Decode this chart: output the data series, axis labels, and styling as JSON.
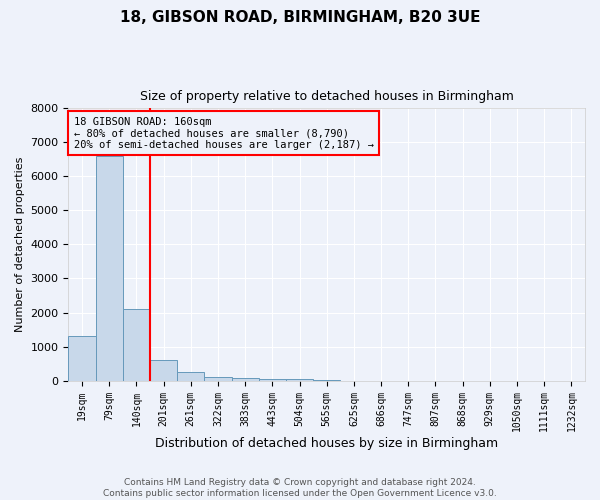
{
  "title": "18, GIBSON ROAD, BIRMINGHAM, B20 3UE",
  "subtitle": "Size of property relative to detached houses in Birmingham",
  "xlabel": "Distribution of detached houses by size in Birmingham",
  "ylabel": "Number of detached properties",
  "bar_color": "#c8d8ea",
  "bar_edge_color": "#6699bb",
  "categories": [
    "19sqm",
    "79sqm",
    "140sqm",
    "201sqm",
    "261sqm",
    "322sqm",
    "383sqm",
    "443sqm",
    "504sqm",
    "565sqm",
    "625sqm",
    "686sqm",
    "747sqm",
    "807sqm",
    "868sqm",
    "929sqm",
    "1050sqm",
    "1111sqm",
    "1232sqm"
  ],
  "values": [
    1300,
    6600,
    2100,
    600,
    260,
    100,
    70,
    50,
    50,
    30,
    0,
    0,
    0,
    0,
    0,
    0,
    0,
    0,
    0
  ],
  "ylim": [
    0,
    8000
  ],
  "red_line_x": 2.5,
  "annotation_text": "18 GIBSON ROAD: 160sqm\n← 80% of detached houses are smaller (8,790)\n20% of semi-detached houses are larger (2,187) →",
  "footer_line1": "Contains HM Land Registry data © Crown copyright and database right 2024.",
  "footer_line2": "Contains public sector information licensed under the Open Government Licence v3.0.",
  "background_color": "#eef2fa",
  "grid_color": "#d8dff0"
}
